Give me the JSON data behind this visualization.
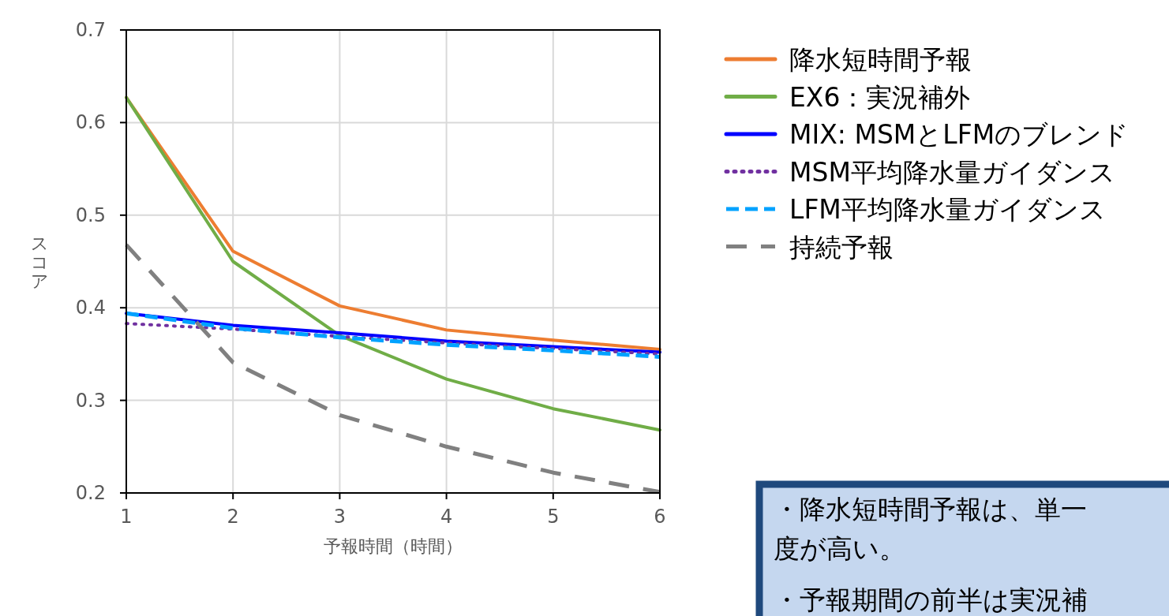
{
  "chart_data": {
    "type": "line",
    "xlabel": "予報時間（時間）",
    "ylabel": "スコア",
    "x": [
      1,
      2,
      3,
      4,
      5,
      6
    ],
    "xlim": [
      1,
      6
    ],
    "xticks": [
      1,
      2,
      3,
      4,
      5,
      6
    ],
    "ylim": [
      0.2,
      0.7
    ],
    "yticks": [
      0.2,
      0.3,
      0.4,
      0.5,
      0.6,
      0.7
    ],
    "grid": true,
    "legend": "right",
    "series": [
      {
        "name": "降水短時間予報",
        "color": "#ed7d31",
        "line_style": "solid",
        "values": [
          0.627,
          0.461,
          0.402,
          0.376,
          0.365,
          0.355
        ]
      },
      {
        "name": "EX6：実況補外",
        "color": "#70ad47",
        "line_style": "solid",
        "values": [
          0.627,
          0.45,
          0.37,
          0.323,
          0.291,
          0.268
        ]
      },
      {
        "name": "MIX: MSMとLFMのブレンド",
        "color": "#0000ff",
        "line_style": "solid",
        "values": [
          0.394,
          0.381,
          0.373,
          0.364,
          0.358,
          0.352
        ]
      },
      {
        "name": "MSM平均降水量ガイダンス",
        "color": "#7030a0",
        "line_style": "dotted",
        "values": [
          0.383,
          0.377,
          0.369,
          0.362,
          0.356,
          0.35
        ]
      },
      {
        "name": "LFM平均降水量ガイダンス",
        "color": "#00a2ff",
        "line_style": "dashed",
        "values": [
          0.394,
          0.378,
          0.368,
          0.36,
          0.354,
          0.347
        ]
      },
      {
        "name": "持続予報",
        "color": "#808080",
        "line_style": "longdash",
        "values": [
          0.468,
          0.341,
          0.284,
          0.25,
          0.222,
          0.201
        ]
      }
    ],
    "annotations": [
      "・降水短時間予報は、単一",
      "度が高い。",
      "・予報期間の前半は実況補"
    ]
  }
}
